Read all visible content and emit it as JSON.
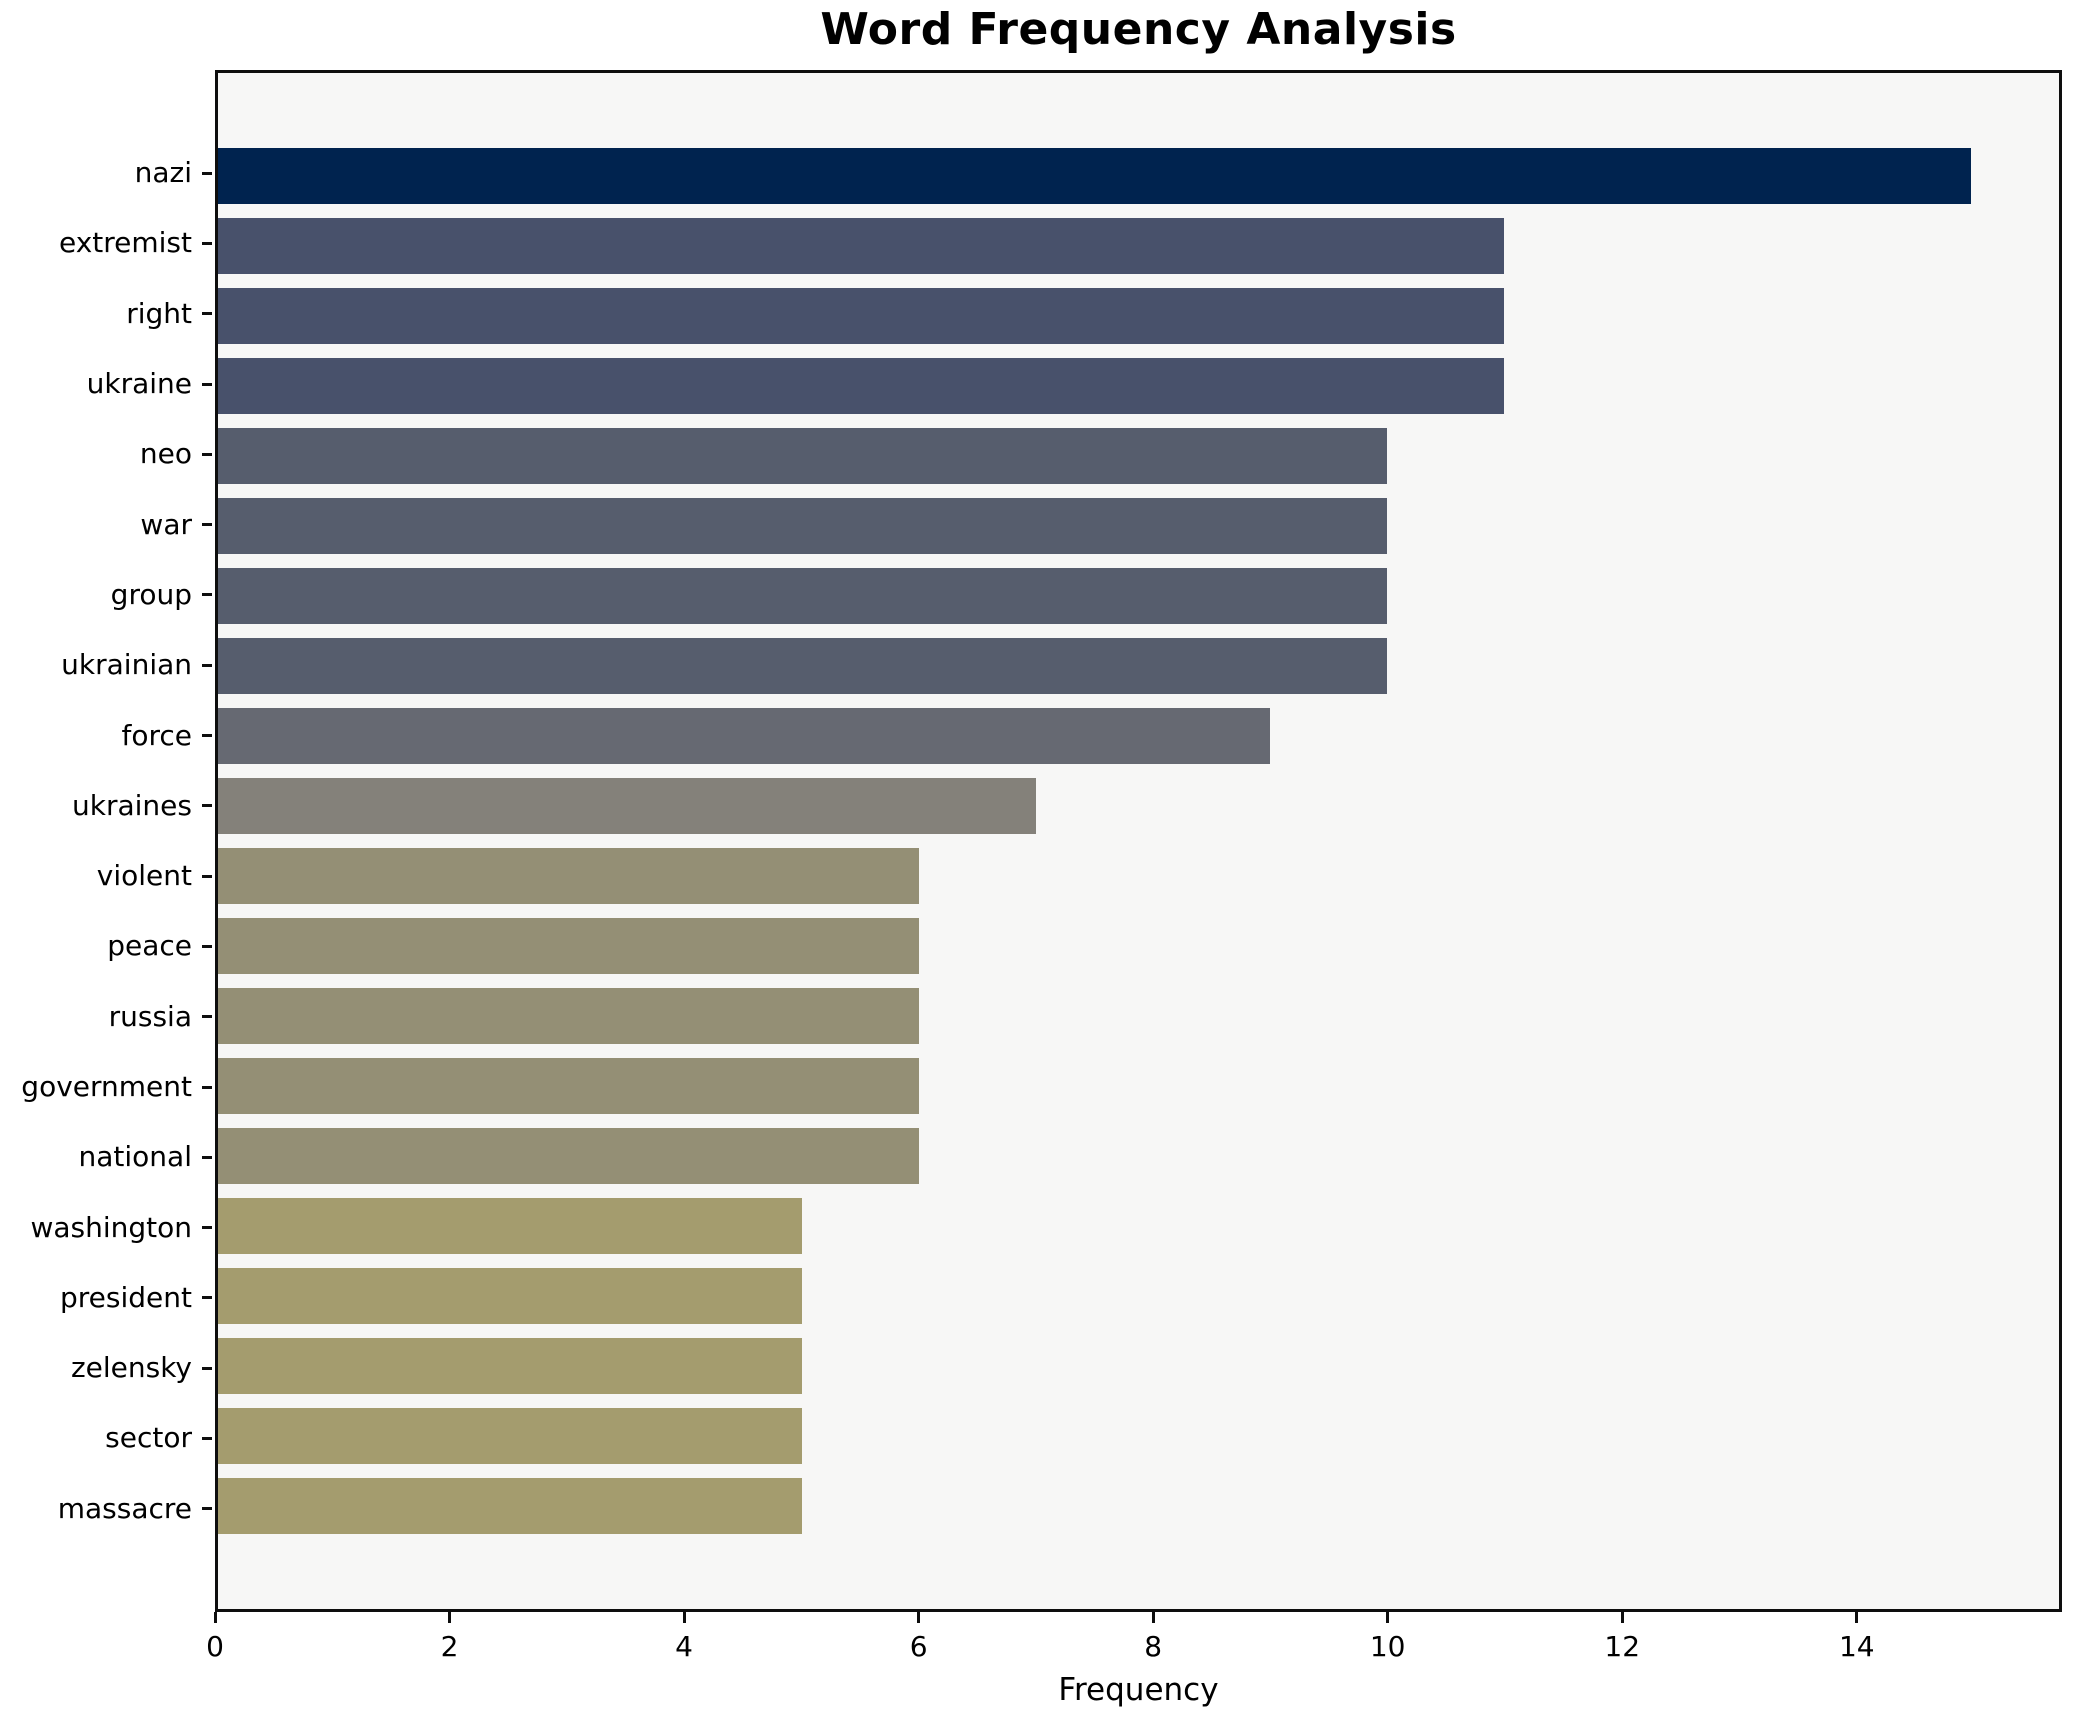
{
  "title": "Word Frequency Analysis",
  "chart_data": {
    "type": "bar",
    "orientation": "horizontal",
    "title": "Word Frequency Analysis",
    "xlabel": "Frequency",
    "ylabel": "",
    "categories": [
      "nazi",
      "extremist",
      "right",
      "ukraine",
      "neo",
      "war",
      "group",
      "ukrainian",
      "force",
      "ukraines",
      "violent",
      "peace",
      "russia",
      "government",
      "national",
      "washington",
      "president",
      "zelensky",
      "sector",
      "massacre"
    ],
    "values": [
      15,
      11,
      11,
      11,
      10,
      10,
      10,
      10,
      9,
      7,
      6,
      6,
      6,
      6,
      6,
      5,
      5,
      5,
      5,
      5
    ],
    "bar_colors": [
      "#00234f",
      "#48516b",
      "#48516b",
      "#48516b",
      "#565d6d",
      "#565d6d",
      "#565d6d",
      "#565d6d",
      "#666972",
      "#84817a",
      "#948f75",
      "#948f75",
      "#948f75",
      "#948f75",
      "#948f75",
      "#a49c6e",
      "#a49c6e",
      "#a49c6e",
      "#a49c6e",
      "#a49c6e"
    ],
    "xlim": [
      0,
      15.75
    ],
    "xticks": [
      0,
      2,
      4,
      6,
      8,
      10,
      12,
      14
    ],
    "grid": false,
    "legend": null,
    "plot_bg": "#f7f7f6",
    "figure_bg": "#ffffff",
    "spine_color": "#0e0e0e",
    "bar_height_fraction": 0.8
  }
}
